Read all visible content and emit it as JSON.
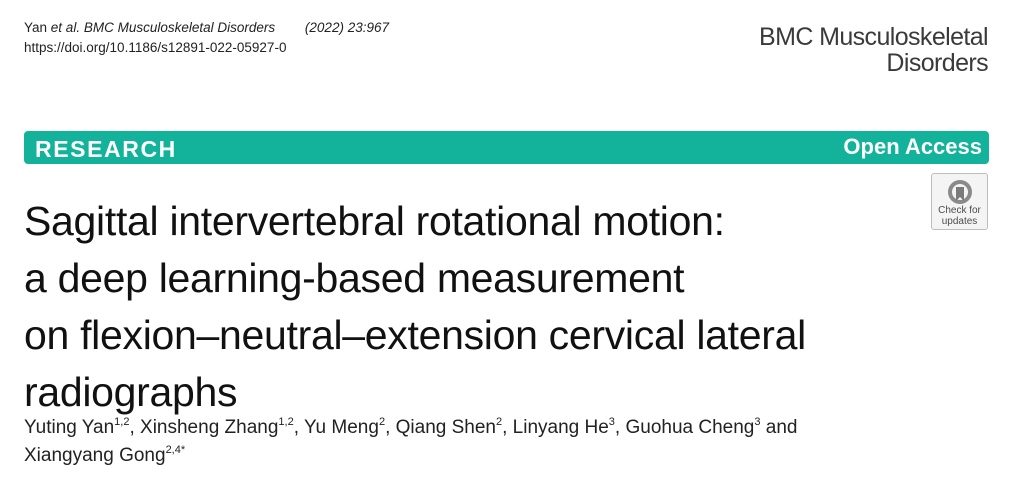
{
  "citation": {
    "authors": "Yan",
    "et_al": "et al.",
    "journal": "BMC Musculoskeletal Disorders",
    "year_volume": "(2022) 23:967",
    "doi": "https://doi.org/10.1186/s12891-022-05927-0"
  },
  "journal_logo": {
    "line1": "BMC Musculoskeletal",
    "line2": "Disorders"
  },
  "banner": {
    "article_type": "RESEARCH",
    "access": "Open Access",
    "color": "#13b39b"
  },
  "badge": {
    "icon": "check-for-updates-icon",
    "line1": "Check for",
    "line2": "updates"
  },
  "title_lines": [
    "Sagittal intervertebral rotational motion:",
    "a deep learning-based measurement",
    "on flexion–neutral–extension cervical lateral",
    "radiographs"
  ],
  "authors": [
    {
      "name": "Yuting Yan",
      "aff": "1,2",
      "sep": ", "
    },
    {
      "name": "Xinsheng Zhang",
      "aff": "1,2",
      "sep": ", "
    },
    {
      "name": "Yu Meng",
      "aff": "2",
      "sep": ", "
    },
    {
      "name": "Qiang Shen",
      "aff": "2",
      "sep": ", "
    },
    {
      "name": "Linyang He",
      "aff": "3",
      "sep": ", "
    },
    {
      "name": "Guohua Cheng",
      "aff": "3",
      "sep": " and "
    },
    {
      "name": "Xiangyang Gong",
      "aff": "2,4*",
      "sep": ""
    }
  ]
}
